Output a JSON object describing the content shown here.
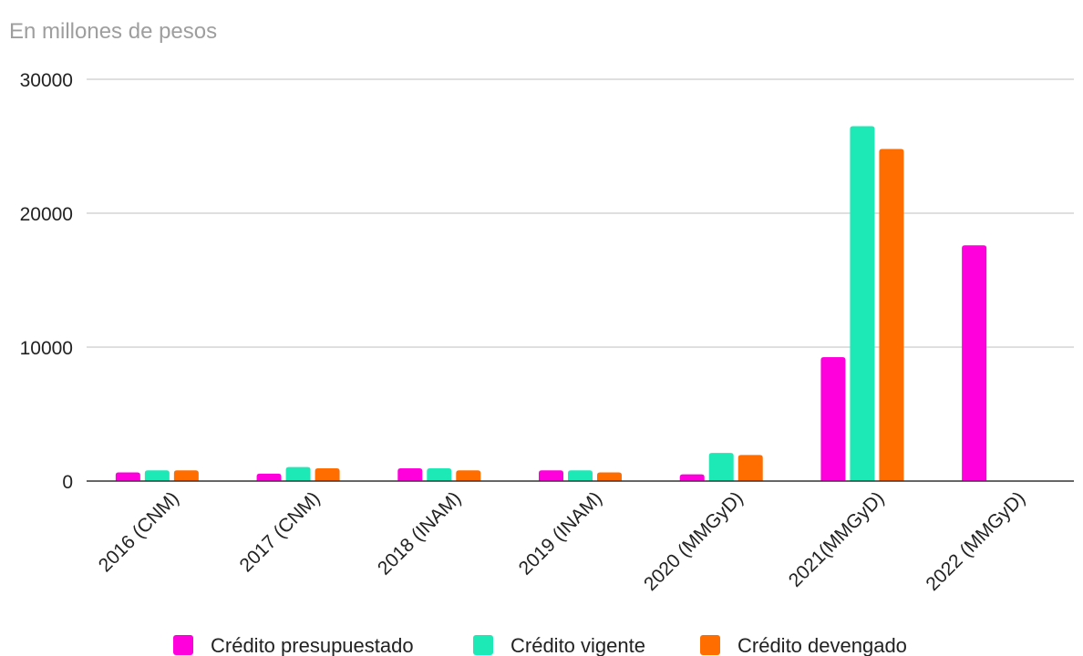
{
  "chart_data": {
    "type": "bar",
    "title": "",
    "ylabel": "En millones de pesos",
    "xlabel": "",
    "ylim": [
      0,
      30000
    ],
    "yticks": [
      0,
      10000,
      20000,
      30000
    ],
    "grid": true,
    "legend_position": "bottom",
    "categories": [
      "2016 (CNM)",
      "2017 (CNM)",
      "2018 (INAM)",
      "2019 (INAM)",
      "2020 (MMGyD)",
      "2021(MMGyD)",
      "2022 (MMGyD)"
    ],
    "series": [
      {
        "name": "Crédito presupuestado",
        "color": "#ff00dd",
        "values": [
          650,
          550,
          950,
          800,
          500,
          9250,
          17600
        ]
      },
      {
        "name": "Crédito vigente",
        "color": "#1de9b6",
        "values": [
          800,
          1050,
          950,
          800,
          2100,
          26500,
          null
        ]
      },
      {
        "name": "Crédito devengado",
        "color": "#ff6d00",
        "values": [
          800,
          950,
          800,
          650,
          1950,
          24800,
          null
        ]
      }
    ]
  }
}
